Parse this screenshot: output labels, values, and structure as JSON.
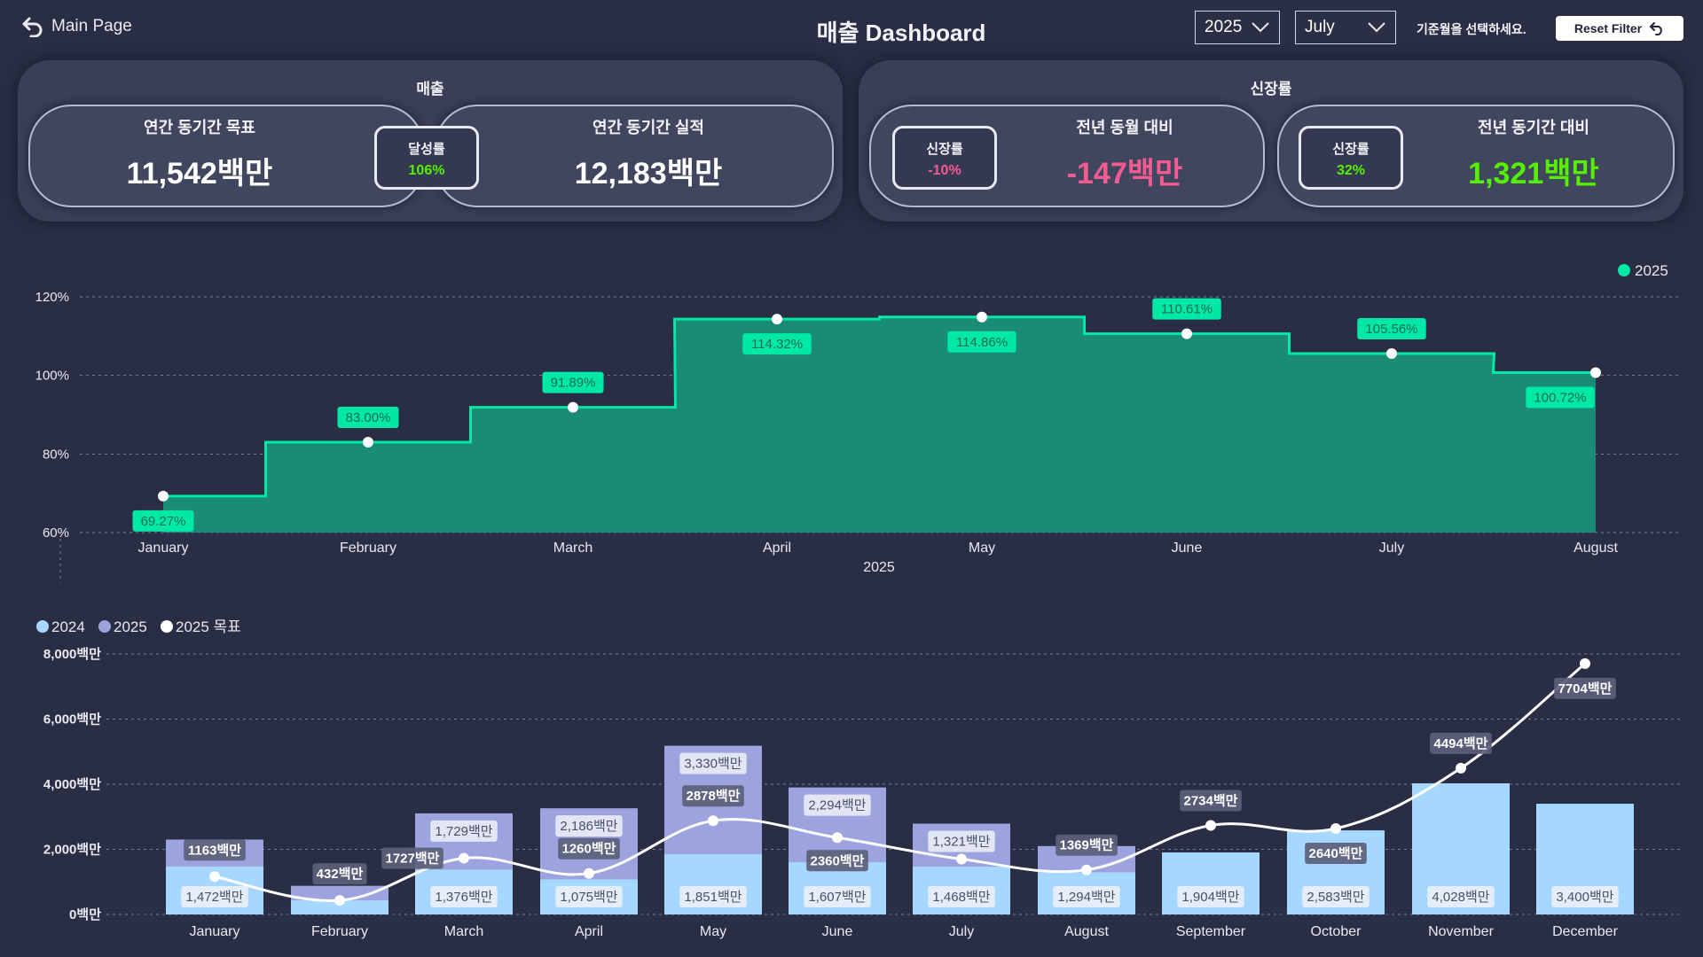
{
  "header": {
    "back_label": "Main Page",
    "title": "매출 Dashboard",
    "year_value": "2025",
    "month_value": "July",
    "hint": "기준월을 선택하세요.",
    "reset_label": "Reset Filter"
  },
  "sales_panel": {
    "title": "매출",
    "target_title": "연간 동기간 목표",
    "target_value": "11,542백만",
    "badge_label": "달성률",
    "badge_value": "106%",
    "actual_title": "연간 동기간 실적",
    "actual_value": "12,183백만"
  },
  "growth_panel": {
    "title": "신장률",
    "mom_badge_label": "신장률",
    "mom_badge_value": "-10%",
    "mom_title": "전년 동월 대비",
    "mom_value": "-147백만",
    "ytd_badge_label": "신장률",
    "ytd_badge_value": "32%",
    "ytd_title": "전년 동기간 대비",
    "ytd_value": "1,321백만"
  },
  "colors": {
    "background": "#292e44",
    "panel": "#3a3f57",
    "teal_line": "#00e8a6",
    "teal_fill": "#1a8b74",
    "bar_2024": "#a6d8ff",
    "bar_2025": "#9da3de",
    "negative": "#f45b91",
    "positive": "#55f000"
  },
  "chart_data": [
    {
      "type": "area",
      "legend": [
        "2025"
      ],
      "legend_position": "top-right",
      "xlabel": "2025",
      "ylabel": "",
      "categories": [
        "January",
        "February",
        "March",
        "April",
        "May",
        "June",
        "July",
        "August"
      ],
      "series": [
        {
          "name": "2025",
          "values": [
            69.27,
            83.0,
            91.89,
            114.32,
            114.86,
            110.61,
            105.56,
            100.72
          ],
          "labels": [
            "69.27%",
            "83.00%",
            "91.89%",
            "114.32%",
            "114.86%",
            "110.61%",
            "105.56%",
            "100.72%"
          ]
        }
      ],
      "ylim": [
        60,
        120
      ],
      "yticks": [
        60,
        80,
        100,
        120
      ],
      "ytick_labels": [
        "60%",
        "80%",
        "100%",
        "120%"
      ],
      "grid": true
    },
    {
      "type": "bar",
      "legend": [
        "2024",
        "2025",
        "2025 목표"
      ],
      "legend_position": "top-left",
      "categories": [
        "January",
        "February",
        "March",
        "April",
        "May",
        "June",
        "July",
        "August",
        "September",
        "October",
        "November",
        "December"
      ],
      "ylim": [
        0,
        8000
      ],
      "yticks": [
        0,
        2000,
        4000,
        6000,
        8000
      ],
      "ytick_labels": [
        "0백만",
        "2,000백만",
        "4,000백만",
        "6,000백만",
        "8,000백만"
      ],
      "grid": true,
      "series": [
        {
          "name": "2024",
          "values": [
            1472,
            432,
            1376,
            1075,
            1851,
            1607,
            1468,
            1294,
            1904,
            2583,
            4028,
            3400
          ],
          "labels": [
            "1,472백만",
            "",
            "1,376백만",
            "1,075백만",
            "1,851백만",
            "1,607백만",
            "1,468백만",
            "1,294백만",
            "1,904백만",
            "2,583백만",
            "4,028백만",
            "3,400백만"
          ]
        },
        {
          "name": "2025",
          "values": [
            2300,
            880,
            3105,
            3261,
            5181,
            3901,
            2789,
            2100,
            null,
            null,
            null,
            null
          ],
          "labels": [
            "",
            "",
            "1,729백만",
            "2,186백만",
            "3,330백만",
            "2,294백만",
            "1,321백만",
            "",
            "",
            "",
            "",
            ""
          ]
        },
        {
          "name": "2025 목표",
          "type": "line",
          "values": [
            1163,
            432,
            1727,
            1260,
            2878,
            2360,
            1700,
            1369,
            2734,
            2640,
            4494,
            7704
          ],
          "labels": [
            "1163백만",
            "432백만",
            "1727백만",
            "1260백만",
            "2878백만",
            "2360백만",
            "",
            "1369백만",
            "2734백만",
            "2640백만",
            "4494백만",
            "7704백만"
          ]
        }
      ]
    }
  ]
}
